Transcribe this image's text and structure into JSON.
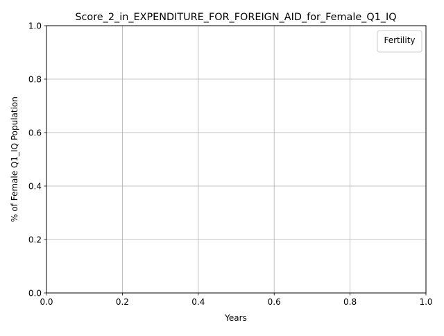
{
  "chart_data": {
    "type": "line",
    "title": "Score_2_in_EXPENDITURE_FOR_FOREIGN_AID_for_Female_Q1_IQ",
    "xlabel": "Years",
    "ylabel": "% of Female Q1_IQ Population",
    "xlim": [
      0.0,
      1.0
    ],
    "ylim": [
      0.0,
      1.0
    ],
    "x_ticks": [
      "0.0",
      "0.2",
      "0.4",
      "0.6",
      "0.8",
      "1.0"
    ],
    "y_ticks": [
      "0.0",
      "0.2",
      "0.4",
      "0.6",
      "0.8",
      "1.0"
    ],
    "grid": true,
    "legend": {
      "title": "Fertility",
      "placement": "top-right",
      "entries": []
    },
    "series": []
  }
}
